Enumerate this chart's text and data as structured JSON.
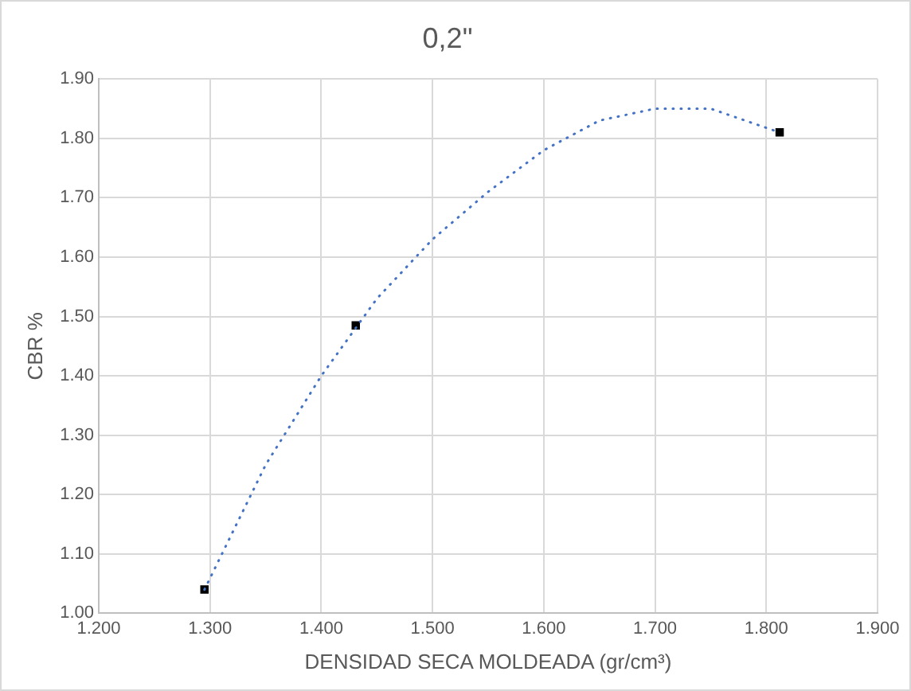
{
  "chart_data": {
    "type": "scatter",
    "title": "0,2\"",
    "xlabel": "DENSIDAD SECA MOLDEADA (gr/cm³)",
    "ylabel": "CBR %",
    "xlim": [
      1.2,
      1.9
    ],
    "xticks": [
      {
        "value": 1.2,
        "label": "1.200"
      },
      {
        "value": 1.3,
        "label": "1.300"
      },
      {
        "value": 1.4,
        "label": "1.400"
      },
      {
        "value": 1.5,
        "label": "1.500"
      },
      {
        "value": 1.6,
        "label": "1.600"
      },
      {
        "value": 1.7,
        "label": "1.700"
      },
      {
        "value": 1.8,
        "label": "1.800"
      },
      {
        "value": 1.9,
        "label": "1.900"
      }
    ],
    "ylim": [
      1.0,
      1.9
    ],
    "yticks": [
      {
        "value": 1.0,
        "label": "1.00"
      },
      {
        "value": 1.1,
        "label": "1.10"
      },
      {
        "value": 1.2,
        "label": "1.20"
      },
      {
        "value": 1.3,
        "label": "1.30"
      },
      {
        "value": 1.4,
        "label": "1.40"
      },
      {
        "value": 1.5,
        "label": "1.50"
      },
      {
        "value": 1.6,
        "label": "1.60"
      },
      {
        "value": 1.7,
        "label": "1.70"
      },
      {
        "value": 1.8,
        "label": "1.80"
      },
      {
        "value": 1.9,
        "label": "1.90"
      }
    ],
    "grid": true,
    "legend": false,
    "series": [
      {
        "type": "line",
        "color": "#4472c4",
        "line_style": "dotted",
        "marker": "none",
        "x": [
          1.295,
          1.35,
          1.4,
          1.45,
          1.5,
          1.55,
          1.6,
          1.65,
          1.7,
          1.75,
          1.812
        ],
        "values": [
          1.04,
          1.25,
          1.4,
          1.53,
          1.63,
          1.71,
          1.78,
          1.83,
          1.85,
          1.85,
          1.81
        ]
      },
      {
        "color": "#000000",
        "marker": "square",
        "x": [
          1.295,
          1.431,
          1.812
        ],
        "values": [
          1.04,
          1.485,
          1.81
        ]
      }
    ]
  }
}
